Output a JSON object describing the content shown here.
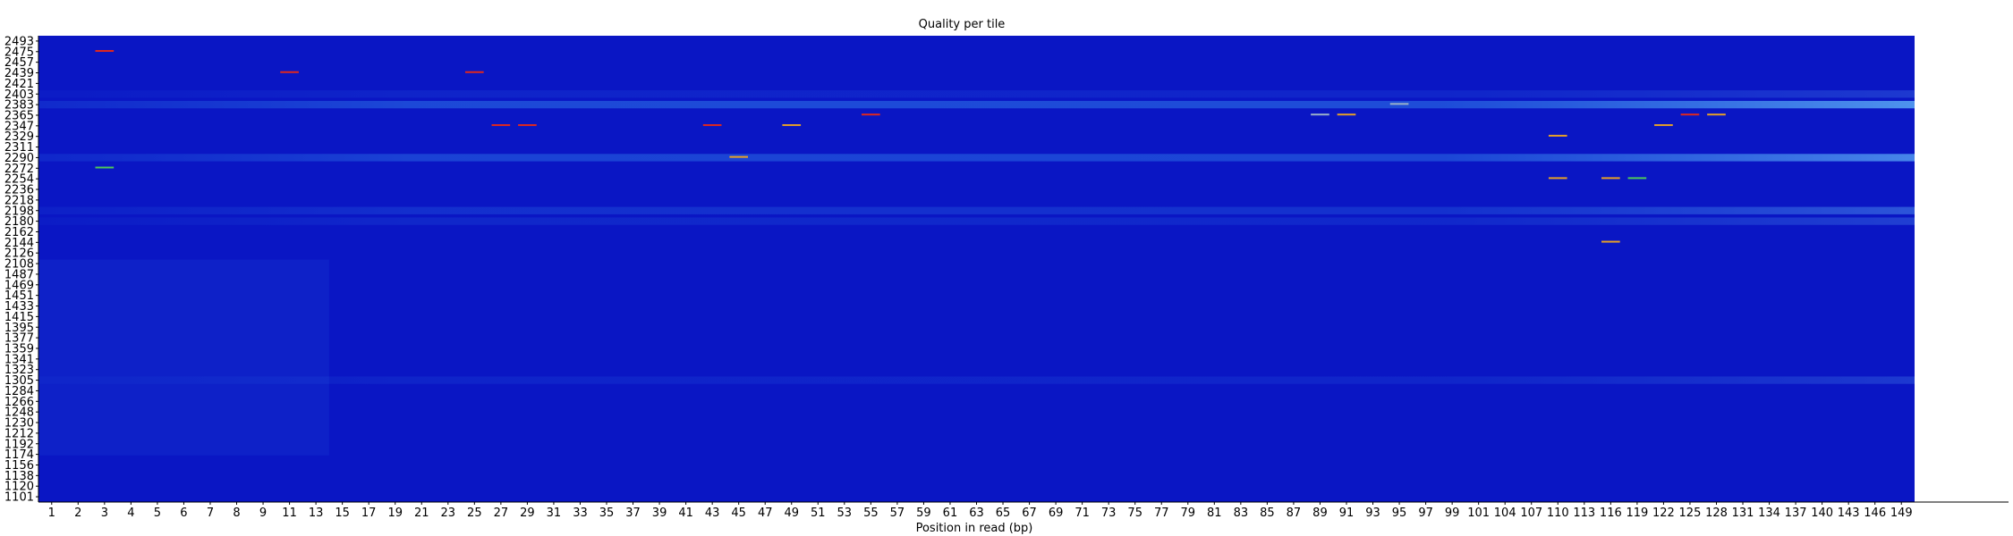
{
  "chart_data": {
    "type": "heatmap",
    "title": "Quality per tile",
    "xlabel": "Position in read (bp)",
    "ylabel": "",
    "x_ticks": [
      "1",
      "2",
      "3",
      "4",
      "5",
      "6",
      "7",
      "8",
      "9",
      "11",
      "13",
      "15",
      "17",
      "19",
      "21",
      "23",
      "25",
      "27",
      "29",
      "31",
      "33",
      "35",
      "37",
      "39",
      "41",
      "43",
      "45",
      "47",
      "49",
      "51",
      "53",
      "55",
      "57",
      "59",
      "61",
      "63",
      "65",
      "67",
      "69",
      "71",
      "73",
      "75",
      "77",
      "79",
      "81",
      "83",
      "85",
      "87",
      "89",
      "91",
      "93",
      "95",
      "97",
      "99",
      "101",
      "104",
      "107",
      "110",
      "113",
      "116",
      "119",
      "122",
      "125",
      "128",
      "131",
      "134",
      "137",
      "140",
      "143",
      "146",
      "149"
    ],
    "y_ticks": [
      "2493",
      "2475",
      "2457",
      "2439",
      "2421",
      "2403",
      "2383",
      "2365",
      "2347",
      "2329",
      "2311",
      "2290",
      "2272",
      "2254",
      "2236",
      "2218",
      "2198",
      "2180",
      "2162",
      "2144",
      "2126",
      "2108",
      "1487",
      "1469",
      "1451",
      "1433",
      "1415",
      "1395",
      "1377",
      "1359",
      "1341",
      "1323",
      "1305",
      "1284",
      "1266",
      "1248",
      "1230",
      "1212",
      "1192",
      "1174",
      "1156",
      "1138",
      "1120",
      "1101"
    ],
    "colors": {
      "background": "#0a16c4",
      "band": "#2f7bea",
      "band_faint": "#1f55dc",
      "red": "#e0281e",
      "orange": "#e6a028",
      "green": "#4ec85a",
      "grey": "#9ab0c8",
      "axis": "#000000"
    },
    "bands": [
      {
        "tile": "2383",
        "strength": 0.9
      },
      {
        "tile": "2290",
        "strength": 0.8
      },
      {
        "tile": "2198",
        "strength": 0.45
      },
      {
        "tile": "2180",
        "strength": 0.3
      },
      {
        "tile": "2403",
        "strength": 0.25
      },
      {
        "tile": "1305",
        "strength": 0.25
      }
    ],
    "highlights": [
      {
        "tile": "2475",
        "from": "3",
        "to": "3",
        "color": "red"
      },
      {
        "tile": "2439",
        "from": "11",
        "to": "11",
        "color": "red"
      },
      {
        "tile": "2439",
        "from": "25",
        "to": "25",
        "color": "red"
      },
      {
        "tile": "2365",
        "from": "55",
        "to": "55",
        "color": "red"
      },
      {
        "tile": "2347",
        "from": "27",
        "to": "27",
        "color": "red"
      },
      {
        "tile": "2347",
        "from": "29",
        "to": "29",
        "color": "red"
      },
      {
        "tile": "2347",
        "from": "43",
        "to": "43",
        "color": "red"
      },
      {
        "tile": "2347",
        "from": "49",
        "to": "49",
        "color": "orange"
      },
      {
        "tile": "2272",
        "from": "3",
        "to": "3",
        "color": "green"
      },
      {
        "tile": "2290",
        "from": "45",
        "to": "45",
        "color": "orange"
      },
      {
        "tile": "2365",
        "from": "89",
        "to": "89",
        "color": "grey"
      },
      {
        "tile": "2365",
        "from": "91",
        "to": "91",
        "color": "orange"
      },
      {
        "tile": "2383",
        "from": "95",
        "to": "95",
        "color": "grey"
      },
      {
        "tile": "2329",
        "from": "110",
        "to": "110",
        "color": "orange"
      },
      {
        "tile": "2254",
        "from": "110",
        "to": "110",
        "color": "orange"
      },
      {
        "tile": "2254",
        "from": "116",
        "to": "116",
        "color": "orange"
      },
      {
        "tile": "2254",
        "from": "119",
        "to": "119",
        "color": "green"
      },
      {
        "tile": "2144",
        "from": "116",
        "to": "116",
        "color": "orange"
      },
      {
        "tile": "2347",
        "from": "122",
        "to": "122",
        "color": "orange"
      },
      {
        "tile": "2365",
        "from": "125",
        "to": "125",
        "color": "red"
      },
      {
        "tile": "2365",
        "from": "128",
        "to": "128",
        "color": "orange"
      }
    ]
  }
}
